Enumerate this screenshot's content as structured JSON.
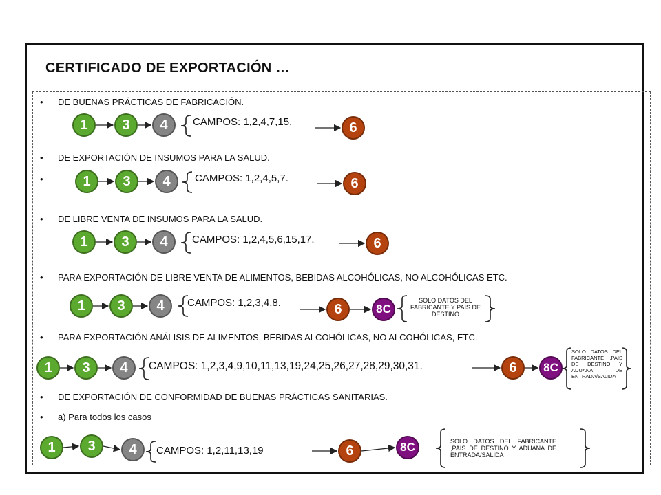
{
  "title": "CERTIFICADO DE EXPORTACIÓN …",
  "colors": {
    "green": "#5ca92f",
    "gray": "#858585",
    "orange": "#b5430f",
    "purple": "#800f80",
    "text": "#111111"
  },
  "bullet_char": "•",
  "sections": [
    {
      "heading": "DE BUENAS PRÁCTICAS DE FABRICACIÓN.",
      "nodes": [
        "1",
        "3",
        "4",
        "6"
      ],
      "campos": "CAMPOS: 1,2,4,7,15."
    },
    {
      "heading": "DE EXPORTACIÓN DE INSUMOS PARA LA SALUD.",
      "nodes": [
        "1",
        "3",
        "4",
        "6"
      ],
      "campos": "CAMPOS: 1,2,4,5,7."
    },
    {
      "heading": "DE LIBRE VENTA DE INSUMOS PARA LA SALUD.",
      "nodes": [
        "1",
        "3",
        "4",
        "6"
      ],
      "campos": "CAMPOS: 1,2,4,5,6,15,17."
    },
    {
      "heading": "PARA EXPORTACIÓN DE LIBRE VENTA DE ALIMENTOS, BEBIDAS ALCOHÓLICAS, NO ALCOHÓLICAS ETC.",
      "nodes": [
        "1",
        "3",
        "4",
        "6",
        "8C"
      ],
      "campos": "CAMPOS: 1,2,3,4,8.",
      "note": "SOLO DATOS DEL FABRICANTE Y PAIS DE DESTINO"
    },
    {
      "heading": "PARA EXPORTACIÓN ANÁLISIS DE ALIMENTOS, BEBIDAS ALCOHÓLICAS, NO ALCOHÓLICAS, ETC.",
      "nodes": [
        "1",
        "3",
        "4",
        "6",
        "8C"
      ],
      "campos": "CAMPOS: 1,2,3,4,9,10,11,13,19,24,25,26,27,28,29,30,31.",
      "note": "SOLO DATOS DEL FABRICANTE ,PAIS DE DESTINO Y ADUANA DE ENTRADA/SALIDA"
    },
    {
      "heading": "DE EXPORTACIÓN DE CONFORMIDAD DE BUENAS PRÁCTICAS SANITARIAS.",
      "sub": "a) Para todos los casos",
      "nodes": [
        "1",
        "3",
        "4",
        "6",
        "8C"
      ],
      "campos": "CAMPOS: 1,2,11,13,19",
      "note": "SOLO DATOS DEL FABRICANTE ,PAIS DE DESTINO Y ADUANA DE ENTRADA/SALIDA"
    }
  ]
}
